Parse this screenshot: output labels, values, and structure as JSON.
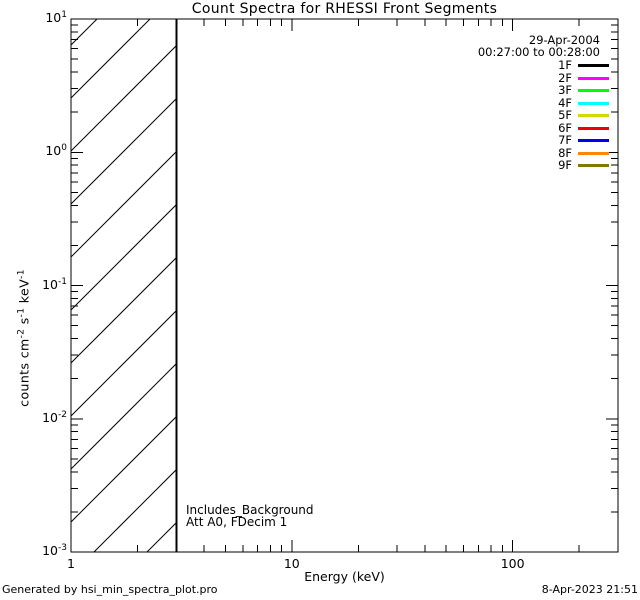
{
  "colors": {
    "foreground": "#000000",
    "background": "#ffffff"
  },
  "chart_data": {
    "type": "line",
    "title": "Count Spectra for RHESSI Front Segments",
    "xlabel": "Energy (keV)",
    "ylabel": "counts cm-2 s-1 keV-1",
    "ylabel_parts": [
      {
        "t": "counts cm"
      },
      {
        "sup": "-2"
      },
      {
        "t": " s"
      },
      {
        "sup": "-1"
      },
      {
        "t": " keV"
      },
      {
        "sup": "-1"
      }
    ],
    "xscale": "log",
    "yscale": "log",
    "xlim": [
      1,
      300
    ],
    "ylim": [
      0.001,
      10
    ],
    "grid": false,
    "x_ticks": [
      {
        "value": 1,
        "label": "1"
      },
      {
        "value": 10,
        "label": "10"
      },
      {
        "value": 100,
        "label": "100"
      }
    ],
    "y_ticks": [
      {
        "value": 10,
        "base": "10",
        "exp": "1"
      },
      {
        "value": 1,
        "base": "10",
        "exp": "0"
      },
      {
        "value": 0.1,
        "base": "10",
        "exp": "-1"
      },
      {
        "value": 0.01,
        "base": "10",
        "exp": "-2"
      },
      {
        "value": 0.001,
        "base": "10",
        "exp": "-3"
      }
    ],
    "hatched_region": {
      "x_from": 1,
      "x_to": 3
    },
    "series": [],
    "legend": {
      "position": "top-right",
      "header_lines": [
        "29-Apr-2004",
        "00:27:00 to 00:28:00"
      ],
      "entries": [
        {
          "label": "1F",
          "color": "#000000"
        },
        {
          "label": "2F",
          "color": "#ff00ff"
        },
        {
          "label": "3F",
          "color": "#00ff00"
        },
        {
          "label": "4F",
          "color": "#00ffff"
        },
        {
          "label": "5F",
          "color": "#d6d600"
        },
        {
          "label": "6F",
          "color": "#ee0000"
        },
        {
          "label": "7F",
          "color": "#0000ee"
        },
        {
          "label": "8F",
          "color": "#ff8800"
        },
        {
          "label": "9F",
          "color": "#827a00"
        }
      ]
    },
    "annotations": [
      "Includes_Background",
      "Att A0, FDecim 1"
    ]
  },
  "footer": {
    "left": "Generated by hsi_min_spectra_plot.pro",
    "right": "8-Apr-2023 21:51"
  }
}
